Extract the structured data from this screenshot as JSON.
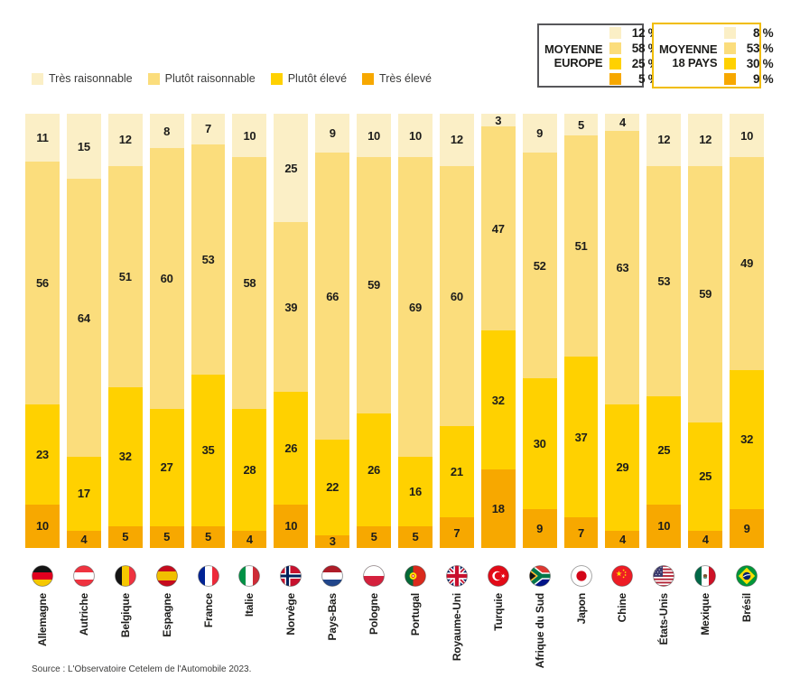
{
  "colors": {
    "tres_raisonnable": "#FBEFC6",
    "plutot_raisonnable": "#FBDD7C",
    "plutot_eleve": "#FFD100",
    "tres_eleve": "#F7A800",
    "label_text": "#1D1D1B"
  },
  "legend": {
    "items": [
      {
        "label": "Très raisonnable",
        "color": "#FBEFC6"
      },
      {
        "label": "Plutôt raisonnable",
        "color": "#FBDD7C"
      },
      {
        "label": "Plutôt élevé",
        "color": "#FFD100"
      },
      {
        "label": "Très élevé",
        "color": "#F7A800"
      }
    ]
  },
  "summary_boxes": [
    {
      "title_line1": "MOYENNE",
      "title_line2": "EUROPE",
      "values": [
        "12 %",
        "58 %",
        "25 %",
        "5 %"
      ],
      "border_color": "#57575A"
    },
    {
      "title_line1": "MOYENNE",
      "title_line2": "18 PAYS",
      "values": [
        "8 %",
        "53 %",
        "30 %",
        "9 %"
      ],
      "border_color": "#F1BD00"
    }
  ],
  "chart_data": {
    "type": "bar",
    "stacked": true,
    "unit": "%",
    "ylim": [
      0,
      100
    ],
    "grid": false,
    "legend_position": "top-left",
    "value_labels": true,
    "categories": [
      "Allemagne",
      "Autriche",
      "Belgique",
      "Espagne",
      "France",
      "Italie",
      "Norvège",
      "Pays-Bas",
      "Pologne",
      "Portugal",
      "Royaume-Uni",
      "Turquie",
      "Afrique du Sud",
      "Japon",
      "Chine",
      "États-Unis",
      "Mexique",
      "Brésil"
    ],
    "flags": [
      "germany",
      "austria",
      "belgium",
      "spain",
      "france",
      "italy",
      "norway",
      "netherlands",
      "poland",
      "portugal",
      "united-kingdom",
      "turkey",
      "south-africa",
      "japan",
      "china",
      "united-states",
      "mexico",
      "brazil"
    ],
    "series": [
      {
        "name": "Très raisonnable",
        "color": "#FBEFC6",
        "values": [
          11,
          15,
          12,
          8,
          7,
          10,
          25,
          9,
          10,
          10,
          12,
          3,
          9,
          5,
          4,
          12,
          12,
          10
        ]
      },
      {
        "name": "Plutôt raisonnable",
        "color": "#FBDD7C",
        "values": [
          56,
          64,
          51,
          60,
          53,
          58,
          39,
          66,
          59,
          69,
          60,
          47,
          52,
          51,
          63,
          53,
          59,
          49
        ]
      },
      {
        "name": "Plutôt élevé",
        "color": "#FFD100",
        "values": [
          23,
          17,
          32,
          27,
          35,
          28,
          26,
          22,
          26,
          16,
          21,
          32,
          30,
          37,
          29,
          25,
          25,
          32
        ]
      },
      {
        "name": "Très élevé",
        "color": "#F7A800",
        "values": [
          10,
          4,
          5,
          5,
          5,
          4,
          10,
          3,
          5,
          5,
          7,
          18,
          9,
          7,
          4,
          10,
          4,
          9
        ]
      }
    ]
  },
  "source": "Source : L'Observatoire Cetelem de l'Automobile 2023."
}
